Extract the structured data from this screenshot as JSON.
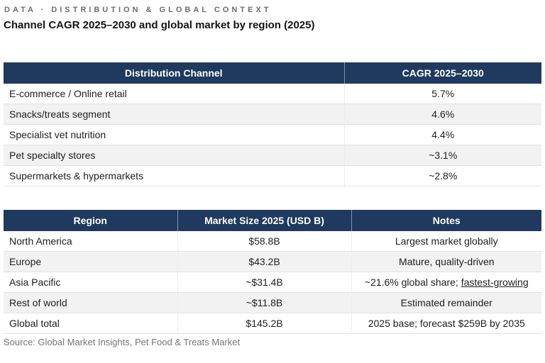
{
  "page": {
    "eyebrow": "DATA · DISTRIBUTION & GLOBAL CONTEXT",
    "title": "Channel CAGR 2025–2030 and global market by region (2025)",
    "source": "Source: Global Market Insights, Pet Food & Treats Market"
  },
  "colors": {
    "header_bg": "#1f3a5e",
    "header_text": "#ffffff",
    "row_alt_bg": "#f2f2f2",
    "row_border": "#e3e3e3",
    "eyebrow_text": "#6d6d6d",
    "source_text": "#757575"
  },
  "channel_table": {
    "headers": [
      "Distribution Channel",
      "CAGR 2025–2030"
    ],
    "rows": [
      {
        "channel": "E-commerce / Online retail",
        "cagr": "5.7%"
      },
      {
        "channel": "Snacks/treats segment",
        "cagr": "4.6%"
      },
      {
        "channel": "Specialist vet nutrition",
        "cagr": "4.4%"
      },
      {
        "channel": "Pet specialty stores",
        "cagr": "~3.1%"
      },
      {
        "channel": "Supermarkets & hypermarkets",
        "cagr": "~2.8%"
      }
    ]
  },
  "region_table": {
    "headers": [
      "Region",
      "Market Size 2025 (USD B)",
      "Notes"
    ],
    "rows": [
      {
        "region": "North America",
        "size": "$58.8B",
        "notes": "Largest market globally"
      },
      {
        "region": "Europe",
        "size": "$43.2B",
        "notes": "Mature, quality-driven"
      },
      {
        "region": "Asia Pacific",
        "size": "~$31.4B",
        "notes_prefix": "~21.6% global share; ",
        "notes_underline": "fastest-growing"
      },
      {
        "region": "Rest of world",
        "size": "~$11.8B",
        "notes": "Estimated remainder"
      },
      {
        "region": "Global total",
        "size": "$145.2B",
        "notes": "2025 base; forecast $259B by 2035"
      }
    ]
  }
}
